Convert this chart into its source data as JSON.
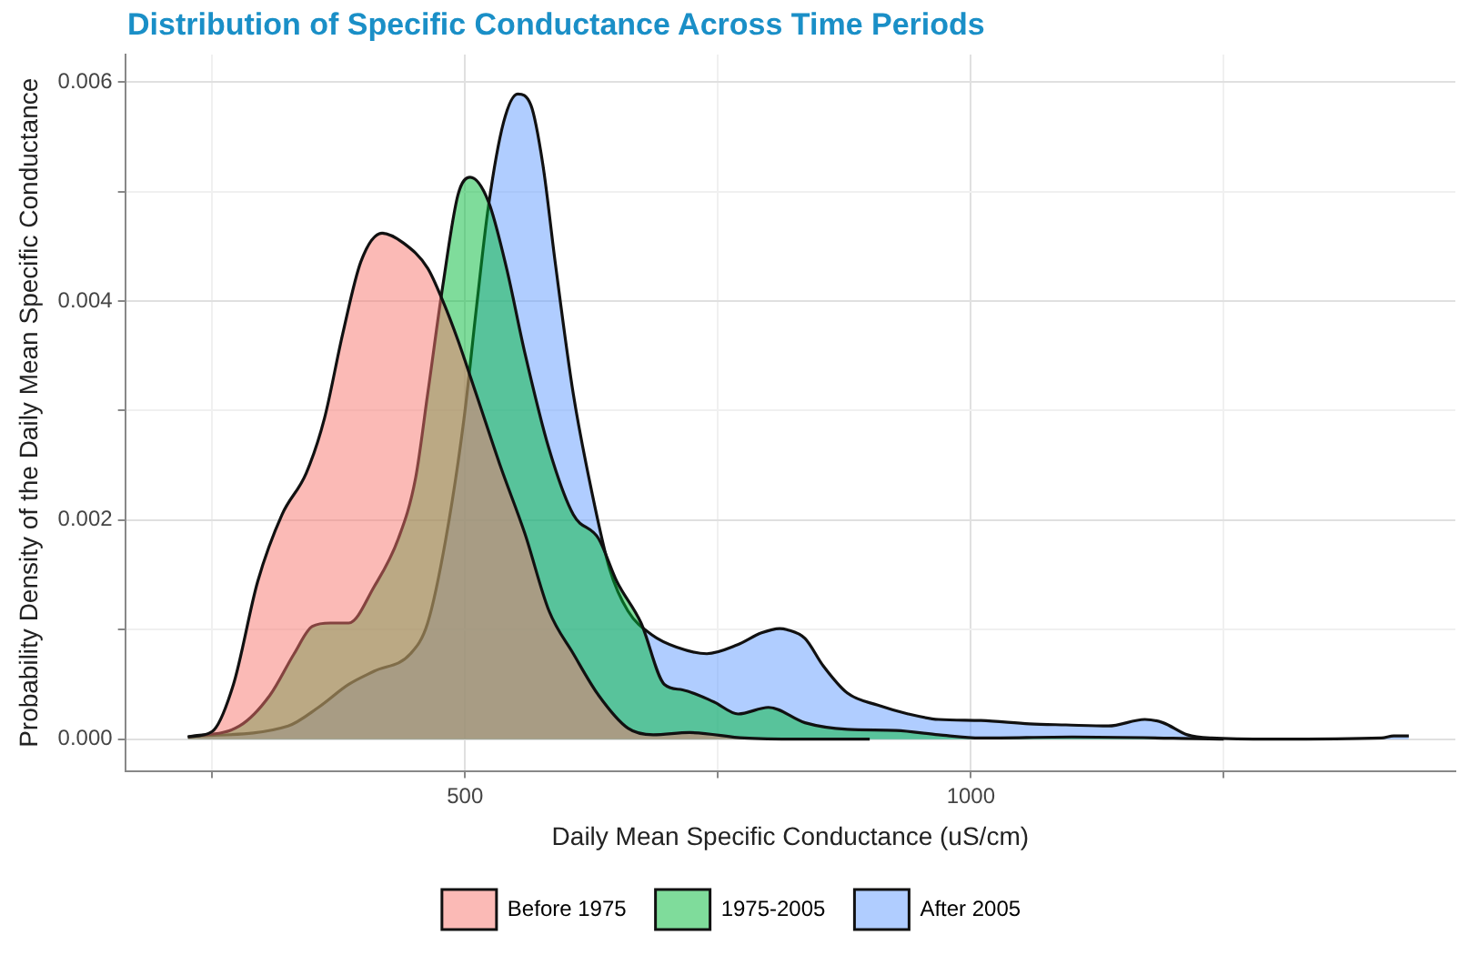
{
  "chart_data": {
    "type": "area",
    "title": "Distribution of Specific Conductance Across Time Periods",
    "xlabel": "Daily Mean Specific Conductance (uS/cm)",
    "ylabel": "Probability Density of the Daily Mean Specific Conductance",
    "xlim": [
      164,
      1479
    ],
    "ylim": [
      -0.00029,
      0.00625
    ],
    "xticks": [
      {
        "value": 250,
        "label": null
      },
      500,
      {
        "value": 750,
        "label": null
      },
      1000,
      {
        "value": 1250,
        "label": null
      }
    ],
    "yticks": [
      {
        "value": 0,
        "label": "0.000"
      },
      {
        "value": 0.001,
        "label": null
      },
      {
        "value": 0.002,
        "label": "0.002"
      },
      {
        "value": 0.003,
        "label": null
      },
      {
        "value": 0.004,
        "label": "0.004"
      },
      {
        "value": 0.005,
        "label": null
      },
      {
        "value": 0.006,
        "label": "0.006"
      }
    ],
    "grid": true,
    "legend": "bottom",
    "marker": "none",
    "series": [
      {
        "name": "Before 1975",
        "color": "#f8766d",
        "x": [
          226,
          250,
          271,
          295,
          319,
          343,
          361,
          379,
          397,
          418,
          439,
          463,
          478,
          493,
          511,
          535,
          559,
          583,
          607,
          632,
          661,
          686,
          722,
          776,
          830,
          900
        ],
        "values": [
          2e-05,
          7e-05,
          0.0005,
          0.00144,
          0.00205,
          0.00243,
          0.00293,
          0.0037,
          0.00436,
          0.00462,
          0.00453,
          0.0043,
          0.004,
          0.00364,
          0.00315,
          0.00249,
          0.00188,
          0.00117,
          0.00078,
          0.0004,
          0.0001,
          4e-05,
          6e-05,
          1e-05,
          0,
          0
        ]
      },
      {
        "name": "1975-2005",
        "color": "#00ba38",
        "x": [
          226,
          277,
          307,
          331,
          349,
          367,
          385,
          410,
          434,
          451,
          463,
          478,
          493,
          505,
          523,
          541,
          559,
          583,
          607,
          632,
          650,
          674,
          697,
          715,
          746,
          770,
          800,
          836,
          878,
          926,
          968,
          1010,
          1100,
          1250
        ],
        "values": [
          2e-05,
          0.00012,
          0.0004,
          0.00078,
          0.00103,
          0.00106,
          0.00106,
          0.00139,
          0.00183,
          0.00238,
          0.00315,
          0.00414,
          0.00497,
          0.00513,
          0.00491,
          0.0043,
          0.00353,
          0.00265,
          0.00205,
          0.00183,
          0.00144,
          0.00106,
          0.0005,
          0.00045,
          0.00034,
          0.00023,
          0.00029,
          0.00015,
          9e-05,
          8e-05,
          4e-05,
          1e-05,
          2e-05,
          0
        ]
      },
      {
        "name": "After 2005",
        "color": "#619cff",
        "x": [
          226,
          325,
          355,
          385,
          410,
          446,
          463,
          481,
          499,
          511,
          523,
          538,
          552,
          565,
          577,
          589,
          607,
          625,
          643,
          661,
          685,
          709,
          739,
          769,
          793,
          811,
          818,
          836,
          854,
          878,
          908,
          938,
          968,
          1010,
          1058,
          1094,
          1136,
          1172,
          1190,
          1214,
          1238,
          1298,
          1406,
          1418,
          1433
        ],
        "values": [
          2e-05,
          0.00012,
          0.00029,
          0.0005,
          0.00062,
          0.00078,
          0.00106,
          0.00183,
          0.00293,
          0.00392,
          0.00486,
          0.00563,
          0.00589,
          0.00579,
          0.00524,
          0.00436,
          0.00315,
          0.00227,
          0.00155,
          0.00117,
          0.00095,
          0.00084,
          0.00078,
          0.00086,
          0.00097,
          0.00101,
          0.001,
          0.00092,
          0.00067,
          0.00042,
          0.00031,
          0.00023,
          0.00018,
          0.00017,
          0.00014,
          0.00013,
          0.00012,
          0.00018,
          0.00015,
          4e-05,
          1e-05,
          0,
          1e-05,
          3e-05,
          3e-05
        ]
      }
    ]
  }
}
